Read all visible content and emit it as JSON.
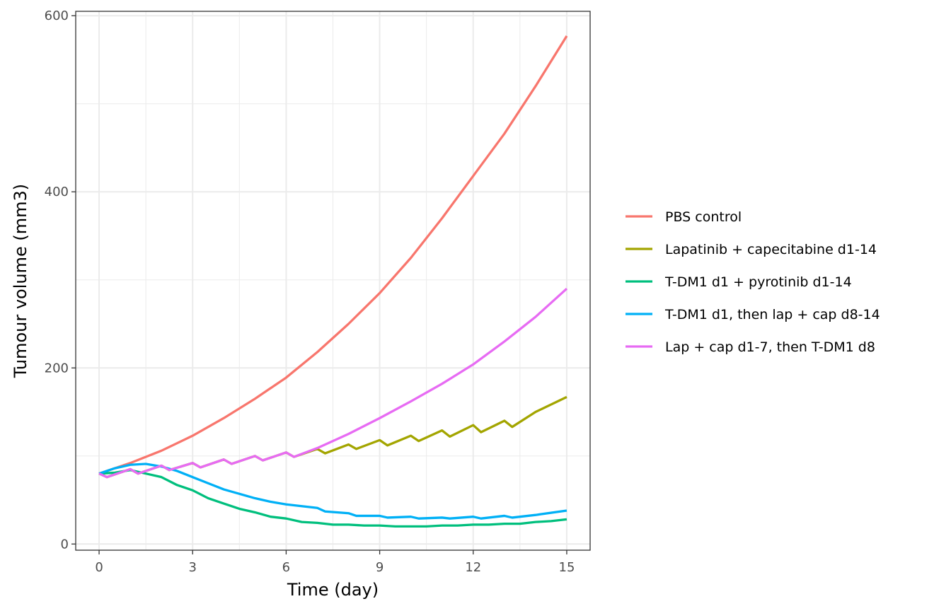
{
  "chart_data": {
    "type": "line",
    "title": "",
    "xlabel": "Time (day)",
    "ylabel": "Tumour volume (mm3)",
    "xlim": [
      -0.75,
      15.75
    ],
    "ylim": [
      -7,
      605
    ],
    "xticks": [
      0,
      3,
      6,
      9,
      12,
      15
    ],
    "yticks": [
      0,
      200,
      400,
      600
    ],
    "grid": true,
    "legend_position": "right",
    "series": [
      {
        "name": "PBS control",
        "color": "#F8766D",
        "points": [
          [
            0,
            80
          ],
          [
            1,
            92
          ],
          [
            2,
            106
          ],
          [
            3,
            123
          ],
          [
            4,
            143
          ],
          [
            5,
            165
          ],
          [
            6,
            189
          ],
          [
            7,
            218
          ],
          [
            8,
            250
          ],
          [
            9,
            285
          ],
          [
            10,
            325
          ],
          [
            11,
            370
          ],
          [
            12,
            418
          ],
          [
            13,
            466
          ],
          [
            14,
            520
          ],
          [
            15,
            577
          ]
        ]
      },
      {
        "name": "Lapatinib + capecitabine d1-14",
        "color": "#A3A500",
        "points": [
          [
            0,
            80
          ],
          [
            0.25,
            76
          ],
          [
            1,
            85
          ],
          [
            1.25,
            80
          ],
          [
            2,
            89
          ],
          [
            2.25,
            84
          ],
          [
            3,
            92
          ],
          [
            3.25,
            87
          ],
          [
            4,
            96
          ],
          [
            4.25,
            91
          ],
          [
            5,
            100
          ],
          [
            5.25,
            95
          ],
          [
            6,
            104
          ],
          [
            6.25,
            99
          ],
          [
            7,
            108
          ],
          [
            7.25,
            103
          ],
          [
            8,
            113
          ],
          [
            8.25,
            108
          ],
          [
            9,
            118
          ],
          [
            9.25,
            112
          ],
          [
            10,
            123
          ],
          [
            10.25,
            117
          ],
          [
            11,
            129
          ],
          [
            11.25,
            122
          ],
          [
            12,
            135
          ],
          [
            12.25,
            127
          ],
          [
            13,
            140
          ],
          [
            13.25,
            133
          ],
          [
            14,
            150
          ],
          [
            15,
            167
          ]
        ]
      },
      {
        "name": "T-DM1 d1 + pyrotinib d1-14",
        "color": "#00BF7D",
        "points": [
          [
            0,
            80
          ],
          [
            0.5,
            81
          ],
          [
            1,
            84
          ],
          [
            1.5,
            80
          ],
          [
            2,
            76
          ],
          [
            2.5,
            67
          ],
          [
            3,
            61
          ],
          [
            3.5,
            52
          ],
          [
            4,
            46
          ],
          [
            4.5,
            40
          ],
          [
            5,
            36
          ],
          [
            5.5,
            31
          ],
          [
            6,
            29
          ],
          [
            6.5,
            25
          ],
          [
            7,
            24
          ],
          [
            7.5,
            22
          ],
          [
            8,
            22
          ],
          [
            8.5,
            21
          ],
          [
            9,
            21
          ],
          [
            9.5,
            20
          ],
          [
            10,
            20
          ],
          [
            10.5,
            20
          ],
          [
            11,
            21
          ],
          [
            11.5,
            21
          ],
          [
            12,
            22
          ],
          [
            12.5,
            22
          ],
          [
            13,
            23
          ],
          [
            13.5,
            23
          ],
          [
            14,
            25
          ],
          [
            14.5,
            26
          ],
          [
            15,
            28
          ]
        ]
      },
      {
        "name": "T-DM1 d1, then lap + cap d8-14",
        "color": "#00B0F6",
        "points": [
          [
            0,
            80
          ],
          [
            0.5,
            86
          ],
          [
            1,
            90
          ],
          [
            1.5,
            91
          ],
          [
            2,
            88
          ],
          [
            2.5,
            83
          ],
          [
            3,
            76
          ],
          [
            3.5,
            69
          ],
          [
            4,
            62
          ],
          [
            4.5,
            57
          ],
          [
            5,
            52
          ],
          [
            5.5,
            48
          ],
          [
            6,
            45
          ],
          [
            6.5,
            43
          ],
          [
            7,
            41
          ],
          [
            7.25,
            37
          ],
          [
            8,
            35
          ],
          [
            8.25,
            32
          ],
          [
            9,
            32
          ],
          [
            9.25,
            30
          ],
          [
            10,
            31
          ],
          [
            10.25,
            29
          ],
          [
            11,
            30
          ],
          [
            11.25,
            29
          ],
          [
            12,
            31
          ],
          [
            12.25,
            29
          ],
          [
            13,
            32
          ],
          [
            13.25,
            30
          ],
          [
            14,
            33
          ],
          [
            15,
            38
          ]
        ]
      },
      {
        "name": "Lap + cap d1-7, then T-DM1 d8",
        "color": "#E76BF3",
        "points": [
          [
            0,
            80
          ],
          [
            0.25,
            76
          ],
          [
            1,
            85
          ],
          [
            1.25,
            80
          ],
          [
            2,
            89
          ],
          [
            2.25,
            84
          ],
          [
            3,
            92
          ],
          [
            3.25,
            87
          ],
          [
            4,
            96
          ],
          [
            4.25,
            91
          ],
          [
            5,
            100
          ],
          [
            5.25,
            95
          ],
          [
            6,
            104
          ],
          [
            6.25,
            99
          ],
          [
            7,
            109
          ],
          [
            8,
            125
          ],
          [
            9,
            143
          ],
          [
            10,
            162
          ],
          [
            11,
            182
          ],
          [
            12,
            204
          ],
          [
            13,
            230
          ],
          [
            14,
            258
          ],
          [
            15,
            290
          ]
        ]
      }
    ]
  }
}
